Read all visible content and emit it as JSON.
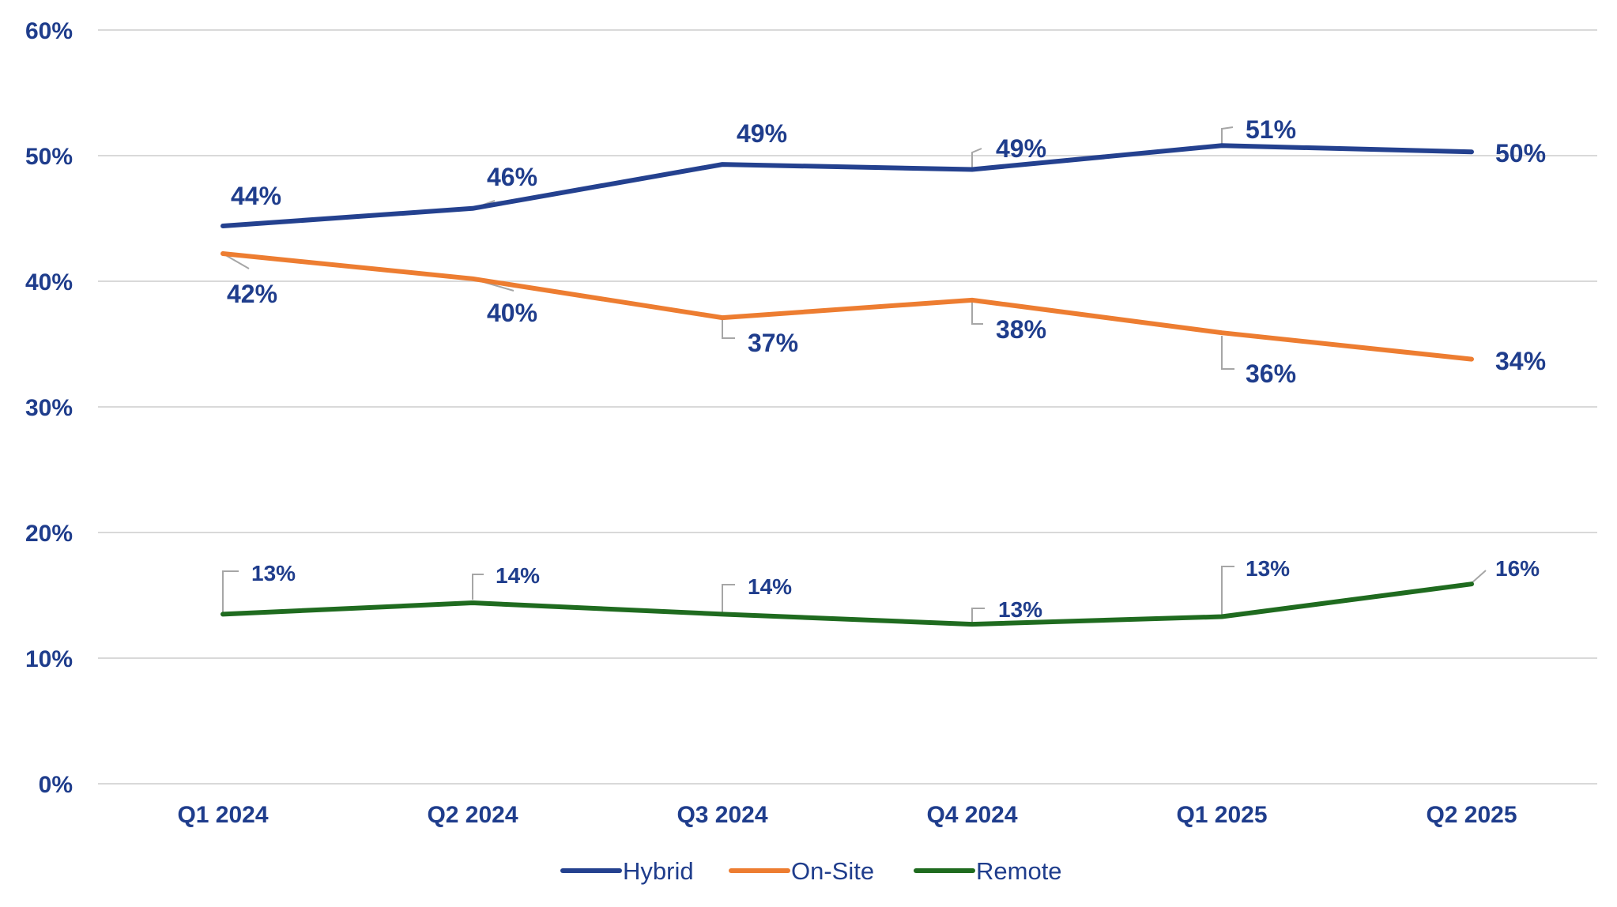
{
  "chart_data": {
    "type": "line",
    "title": "",
    "xlabel": "",
    "ylabel": "",
    "categories": [
      "Q1 2024",
      "Q2 2024",
      "Q3 2024",
      "Q4 2024",
      "Q1 2025",
      "Q2 2025"
    ],
    "ylim": [
      0,
      60
    ],
    "y_ticks": [
      "0%",
      "10%",
      "20%",
      "30%",
      "40%",
      "50%",
      "60%"
    ],
    "grid": true,
    "legend_position": "bottom",
    "series": [
      {
        "name": "Hybrid",
        "color": "#24418f",
        "values": [
          44.4,
          45.8,
          49.3,
          48.9,
          50.8,
          50.3
        ],
        "labels": [
          "44%",
          "46%",
          "49%",
          "49%",
          "51%",
          "50%"
        ]
      },
      {
        "name": "On-Site",
        "color": "#ed7d31",
        "values": [
          42.2,
          40.2,
          37.1,
          38.5,
          35.9,
          33.8
        ],
        "labels": [
          "42%",
          "40%",
          "37%",
          "38%",
          "36%",
          "34%"
        ]
      },
      {
        "name": "Remote",
        "color": "#1f6b1f",
        "values": [
          13.5,
          14.4,
          13.5,
          12.7,
          13.3,
          15.9
        ],
        "labels": [
          "13%",
          "14%",
          "14%",
          "13%",
          "13%",
          "16%"
        ]
      }
    ],
    "label_color": "#1f3d8c",
    "grid_color": "#d9d9d9"
  }
}
